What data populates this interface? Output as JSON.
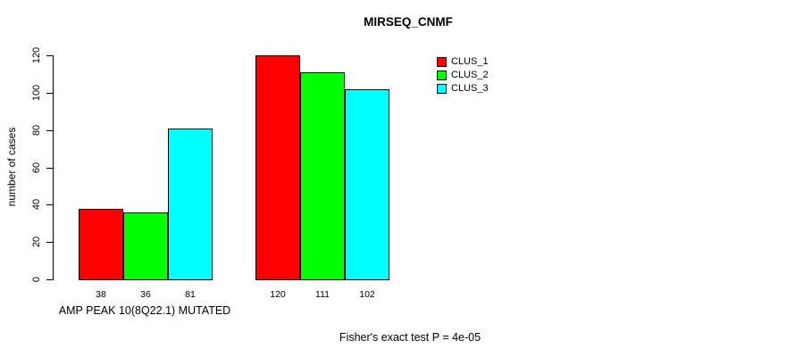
{
  "header": {
    "title": "MIRSEQ_CNMF"
  },
  "chart_data": {
    "type": "bar",
    "title": "MIRSEQ_CNMF",
    "ylabel": "number of cases",
    "xlabel": "AMP PEAK 10(8Q22.1) MUTATED",
    "annotation": "Fisher's exact test P = 4e-05",
    "categories": [
      "AMP PEAK 10(8Q22.1) MUTATED",
      ""
    ],
    "series": [
      {
        "name": "CLUS_1",
        "color": "#ff0000",
        "values": [
          38,
          120
        ]
      },
      {
        "name": "CLUS_2",
        "color": "#00ff00",
        "values": [
          36,
          111
        ]
      },
      {
        "name": "CLUS_3",
        "color": "#00ffff",
        "values": [
          81,
          102
        ]
      }
    ],
    "yticks": [
      0,
      20,
      40,
      60,
      80,
      100,
      120
    ],
    "ylim": [
      0,
      120
    ],
    "bar_value_labels": [
      [
        38,
        36,
        81
      ],
      [
        120,
        111,
        102
      ]
    ],
    "legend_position": "top-right",
    "grid": false,
    "background_color": "#ffffff",
    "axis_color": "#000000"
  }
}
